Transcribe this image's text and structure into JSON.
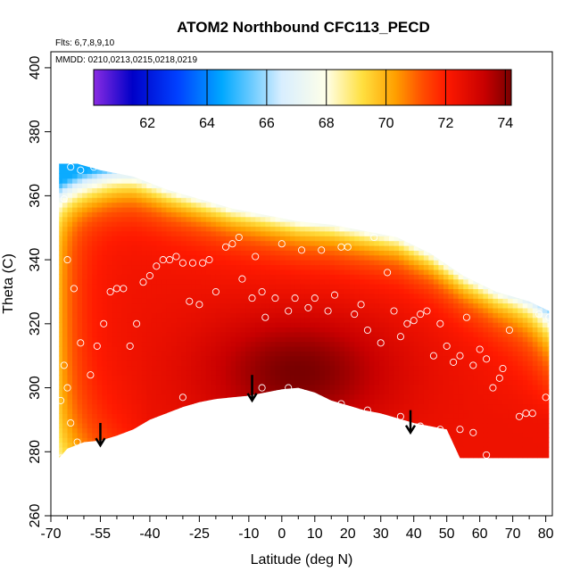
{
  "chart_data": {
    "type": "heatmap",
    "title": "ATOM2 Northbound CFC113_PECD",
    "flights_note": "Flts: 6,7,8,9,10",
    "dates_note": "MMDD: 0210,0213,0215,0218,0219",
    "xlabel": "Latitude (deg N)",
    "ylabel": "Theta (C)",
    "xlim": [
      -70,
      82
    ],
    "ylim": [
      260,
      405
    ],
    "x_ticks": [
      {
        "value": -70,
        "label": "-70"
      },
      {
        "value": -55,
        "label": "-55"
      },
      {
        "value": -40,
        "label": "-40"
      },
      {
        "value": -25,
        "label": "-25"
      },
      {
        "value": -10,
        "label": "-10"
      },
      {
        "value": 0,
        "label": "0"
      },
      {
        "value": 10,
        "label": "10"
      },
      {
        "value": 20,
        "label": "20"
      },
      {
        "value": 30,
        "label": "30"
      },
      {
        "value": 40,
        "label": "40"
      },
      {
        "value": 50,
        "label": "50"
      },
      {
        "value": 60,
        "label": "60"
      },
      {
        "value": 70,
        "label": "70"
      },
      {
        "value": 80,
        "label": "80"
      }
    ],
    "x_minor_ticks": [
      -65,
      -60,
      -50,
      -45,
      -35,
      -30,
      -20,
      -15,
      -5,
      5,
      15,
      25,
      35,
      45,
      55,
      65,
      75
    ],
    "y_ticks": [
      {
        "value": 260,
        "label": "260"
      },
      {
        "value": 280,
        "label": "280"
      },
      {
        "value": 300,
        "label": "300"
      },
      {
        "value": 320,
        "label": "320"
      },
      {
        "value": 340,
        "label": "340"
      },
      {
        "value": 360,
        "label": "360"
      },
      {
        "value": 380,
        "label": "380"
      },
      {
        "value": 400,
        "label": "400"
      }
    ],
    "colorbar": {
      "range": [
        60.2,
        74.2
      ],
      "ticks": [
        {
          "value": 62,
          "label": "62"
        },
        {
          "value": 64,
          "label": "64"
        },
        {
          "value": 66,
          "label": "66"
        },
        {
          "value": 68,
          "label": "68"
        },
        {
          "value": 70,
          "label": "70"
        },
        {
          "value": 72,
          "label": "72"
        },
        {
          "value": 74,
          "label": "74"
        }
      ],
      "stops": [
        {
          "value": 60.2,
          "color": "#8a2be2"
        },
        {
          "value": 61.5,
          "color": "#0000c8"
        },
        {
          "value": 63.0,
          "color": "#0040ff"
        },
        {
          "value": 64.5,
          "color": "#00a8ff"
        },
        {
          "value": 66.5,
          "color": "#d8eeff"
        },
        {
          "value": 68.0,
          "color": "#ffffe8"
        },
        {
          "value": 69.2,
          "color": "#ffe040"
        },
        {
          "value": 70.3,
          "color": "#ffa000"
        },
        {
          "value": 71.2,
          "color": "#ff5000"
        },
        {
          "value": 72.0,
          "color": "#ff1a00"
        },
        {
          "value": 73.3,
          "color": "#c80000"
        },
        {
          "value": 74.2,
          "color": "#780000"
        }
      ]
    },
    "field_boundary": {
      "top": [
        [
          -67.5,
          370
        ],
        [
          -62,
          370
        ],
        [
          -55,
          368
        ],
        [
          -45,
          366
        ],
        [
          -35,
          362
        ],
        [
          -25,
          359
        ],
        [
          -15,
          356
        ],
        [
          -5,
          354
        ],
        [
          5,
          352
        ],
        [
          15,
          351
        ],
        [
          25,
          349
        ],
        [
          35,
          347
        ],
        [
          45,
          342
        ],
        [
          55,
          335
        ],
        [
          65,
          330
        ],
        [
          75,
          327
        ],
        [
          81,
          324
        ]
      ],
      "bottom": [
        [
          -67.5,
          278
        ],
        [
          -65,
          281
        ],
        [
          -60,
          283
        ],
        [
          -55,
          283.5
        ],
        [
          -50,
          285
        ],
        [
          -45,
          287
        ],
        [
          -40,
          290
        ],
        [
          -35,
          292
        ],
        [
          -30,
          294
        ],
        [
          -25,
          295.5
        ],
        [
          -20,
          296.5
        ],
        [
          -15,
          297
        ],
        [
          -10,
          297.5
        ],
        [
          -5,
          298.5
        ],
        [
          0,
          299.5
        ],
        [
          5,
          300
        ],
        [
          10,
          298.5
        ],
        [
          15,
          296
        ],
        [
          20,
          294.5
        ],
        [
          25,
          293
        ],
        [
          30,
          292
        ],
        [
          35,
          290.5
        ],
        [
          40,
          289
        ],
        [
          45,
          288
        ],
        [
          50,
          287
        ],
        [
          54,
          278
        ],
        [
          81,
          278
        ]
      ]
    },
    "field_features": {
      "background_value": 72.4,
      "core": {
        "lat": 5,
        "theta": 305,
        "lat_width": 28,
        "theta_width": 18,
        "peak": 74.0
      },
      "polar_low_center": [
        -67,
        374
      ],
      "polar_low_min": 64.6
    },
    "observations": [
      [
        -64,
        369
      ],
      [
        -61,
        368
      ],
      [
        -57,
        369
      ],
      [
        -66,
        359
      ],
      [
        -65,
        340
      ],
      [
        -63,
        331
      ],
      [
        -61,
        314
      ],
      [
        -66,
        307
      ],
      [
        -65,
        300
      ],
      [
        -64,
        289
      ],
      [
        -62,
        283
      ],
      [
        -67,
        278
      ],
      [
        -58,
        304
      ],
      [
        -56,
        313
      ],
      [
        -54,
        320
      ],
      [
        -52,
        330
      ],
      [
        -50,
        331
      ],
      [
        -48,
        331
      ],
      [
        -46,
        313
      ],
      [
        -44,
        320
      ],
      [
        -42,
        333
      ],
      [
        -40,
        335
      ],
      [
        -38,
        338
      ],
      [
        -36,
        340
      ],
      [
        -34,
        340
      ],
      [
        -32,
        341
      ],
      [
        -30,
        339
      ],
      [
        -27,
        339
      ],
      [
        -24,
        339
      ],
      [
        -22,
        340
      ],
      [
        -28,
        327
      ],
      [
        -25,
        326
      ],
      [
        -20,
        330
      ],
      [
        -17,
        344
      ],
      [
        -15,
        345
      ],
      [
        -13,
        347
      ],
      [
        -12,
        334
      ],
      [
        -9,
        328
      ],
      [
        -8,
        341
      ],
      [
        -6,
        330
      ],
      [
        -5,
        322
      ],
      [
        -2,
        328
      ],
      [
        0,
        345
      ],
      [
        2,
        324
      ],
      [
        4,
        328
      ],
      [
        6,
        343
      ],
      [
        8,
        325
      ],
      [
        10,
        328
      ],
      [
        12,
        343
      ],
      [
        14,
        324
      ],
      [
        16,
        329
      ],
      [
        18,
        344
      ],
      [
        20,
        344
      ],
      [
        22,
        323
      ],
      [
        24,
        326
      ],
      [
        26,
        318
      ],
      [
        28,
        347
      ],
      [
        30,
        314
      ],
      [
        32,
        336
      ],
      [
        34,
        324
      ],
      [
        36,
        316
      ],
      [
        38,
        320
      ],
      [
        40,
        321
      ],
      [
        42,
        323
      ],
      [
        44,
        324
      ],
      [
        46,
        310
      ],
      [
        48,
        320
      ],
      [
        50,
        313
      ],
      [
        52,
        308
      ],
      [
        54,
        310
      ],
      [
        56,
        322
      ],
      [
        58,
        307
      ],
      [
        60,
        312
      ],
      [
        62,
        309
      ],
      [
        64,
        300
      ],
      [
        66,
        303
      ],
      [
        67,
        306
      ],
      [
        69,
        318
      ],
      [
        72,
        291
      ],
      [
        74,
        292
      ],
      [
        76,
        292
      ],
      [
        78,
        323
      ],
      [
        80,
        297
      ],
      [
        81,
        322
      ],
      [
        -58,
        279
      ],
      [
        -44,
        286
      ],
      [
        -30,
        297
      ],
      [
        -6,
        300
      ],
      [
        2,
        300
      ],
      [
        10,
        297
      ],
      [
        18,
        295
      ],
      [
        26,
        293
      ],
      [
        36,
        291
      ],
      [
        42,
        288
      ],
      [
        48,
        287
      ],
      [
        54,
        287
      ],
      [
        58,
        286
      ],
      [
        62,
        279
      ],
      [
        -69,
        310
      ],
      [
        -67,
        296
      ]
    ],
    "arrows": [
      {
        "lat": -55,
        "theta_from": 289,
        "theta_to": 282
      },
      {
        "lat": -9,
        "theta_from": 304,
        "theta_to": 296
      },
      {
        "lat": 39,
        "theta_from": 293,
        "theta_to": 286
      }
    ]
  }
}
